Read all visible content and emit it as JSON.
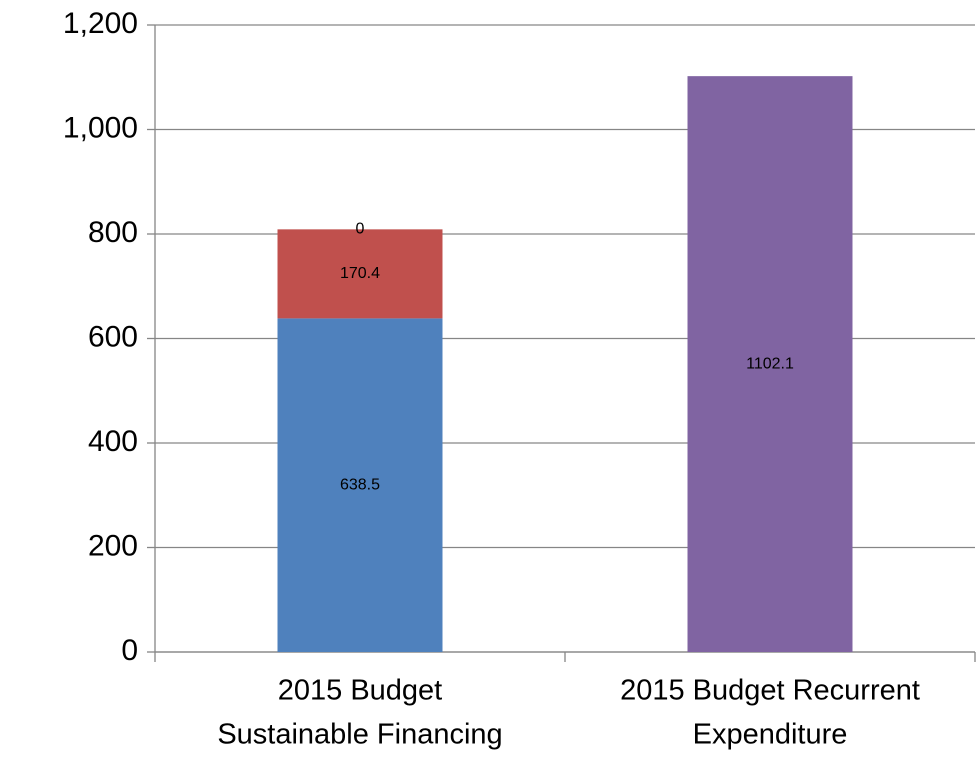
{
  "chart_data": {
    "type": "stacked_bar",
    "categories": [
      [
        "2015 Budget",
        "Sustainable Financing"
      ],
      [
        "2015 Budget Recurrent",
        "Expenditure"
      ]
    ],
    "series": [
      {
        "color": "#4f81bd",
        "values": [
          638.5,
          null
        ]
      },
      {
        "color": "#c0504d",
        "values": [
          170.4,
          null
        ]
      },
      {
        "color": "#9bbb59",
        "values": [
          0,
          null
        ]
      },
      {
        "color": "#8064a2",
        "values": [
          null,
          1102.1
        ]
      }
    ],
    "ylim": [
      0,
      1200
    ],
    "yticks": [
      0,
      200,
      400,
      600,
      800,
      {
        "value": 1000,
        "label": "1,000"
      },
      {
        "value": 1200,
        "label": "1,200"
      }
    ],
    "grid": true
  }
}
